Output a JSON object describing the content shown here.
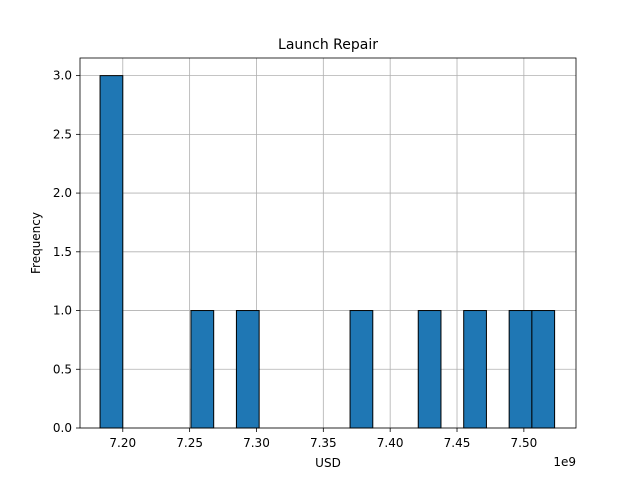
{
  "chart_data": {
    "type": "bar",
    "title": "Launch Repair",
    "xlabel": "USD",
    "ylabel": "Frequency",
    "x_offset_label": "1e9",
    "xlim": [
      7.168,
      7.539
    ],
    "ylim": [
      0,
      3.15
    ],
    "grid": true,
    "bar_color": "#1f77b4",
    "bin_width": 0.017,
    "bins": [
      {
        "start": 7.183,
        "count": 3
      },
      {
        "start": 7.251,
        "count": 1
      },
      {
        "start": 7.285,
        "count": 1
      },
      {
        "start": 7.37,
        "count": 1
      },
      {
        "start": 7.421,
        "count": 1
      },
      {
        "start": 7.455,
        "count": 1
      },
      {
        "start": 7.489,
        "count": 1
      },
      {
        "start": 7.506,
        "count": 1
      }
    ],
    "x_ticks": [
      {
        "value": 7.2,
        "label": "7.20"
      },
      {
        "value": 7.25,
        "label": "7.25"
      },
      {
        "value": 7.3,
        "label": "7.30"
      },
      {
        "value": 7.35,
        "label": "7.35"
      },
      {
        "value": 7.4,
        "label": "7.40"
      },
      {
        "value": 7.45,
        "label": "7.45"
      },
      {
        "value": 7.5,
        "label": "7.50"
      }
    ],
    "y_ticks": [
      {
        "value": 0.0,
        "label": "0.0"
      },
      {
        "value": 0.5,
        "label": "0.5"
      },
      {
        "value": 1.0,
        "label": "1.0"
      },
      {
        "value": 1.5,
        "label": "1.5"
      },
      {
        "value": 2.0,
        "label": "2.0"
      },
      {
        "value": 2.5,
        "label": "2.5"
      },
      {
        "value": 3.0,
        "label": "3.0"
      }
    ]
  }
}
